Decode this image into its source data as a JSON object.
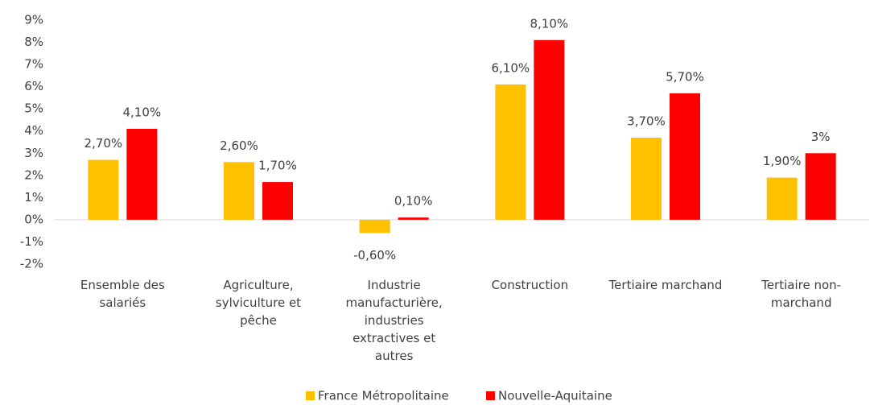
{
  "chart_data": {
    "type": "bar",
    "categories": [
      "Ensemble des salariés",
      "Agriculture, sylviculture et pêche",
      "Industrie manufacturière, industries extractives et autres",
      "Construction",
      "Tertiaire marchand",
      "Tertiaire non-marchand"
    ],
    "series": [
      {
        "name": "France Métropolitaine",
        "color": "#ffc000",
        "values": [
          2.7,
          2.6,
          -0.6,
          6.1,
          3.7,
          1.9
        ],
        "value_labels": [
          "2,70%",
          "2,60%",
          "-0,60%",
          "6,10%",
          "3,70%",
          "1,90%"
        ]
      },
      {
        "name": "Nouvelle-Aquitaine",
        "color": "#ff0000",
        "values": [
          4.1,
          1.7,
          0.1,
          8.1,
          5.7,
          3
        ],
        "value_labels": [
          "4,10%",
          "1,70%",
          "0,10%",
          "8,10%",
          "5,70%",
          "3%"
        ]
      }
    ],
    "ylim": [
      -2,
      9
    ],
    "yticks": [
      {
        "value": -2,
        "label": "-2%"
      },
      {
        "value": -1,
        "label": "-1%"
      },
      {
        "value": 0,
        "label": "0%"
      },
      {
        "value": 1,
        "label": "1%"
      },
      {
        "value": 2,
        "label": "2%"
      },
      {
        "value": 3,
        "label": "3%"
      },
      {
        "value": 4,
        "label": "4%"
      },
      {
        "value": 5,
        "label": "5%"
      },
      {
        "value": 6,
        "label": "6%"
      },
      {
        "value": 7,
        "label": "7%"
      },
      {
        "value": 8,
        "label": "8%"
      },
      {
        "value": 9,
        "label": "9%"
      }
    ],
    "grid": false,
    "legend": "bottom"
  }
}
